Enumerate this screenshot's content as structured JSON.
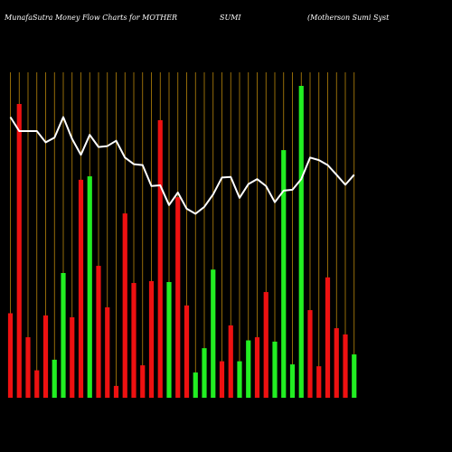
{
  "header": {
    "left": "MunafaSutra  Money Flow  Charts for MOTHER",
    "middle": "SUMI",
    "right": "(Motherson  Sumi  Syst"
  },
  "colors": {
    "background": "#000000",
    "up": "#22ee22",
    "down": "#ee1111",
    "grid": "#b8860b",
    "line": "#ffffff",
    "text": "#ffffff"
  },
  "chart_data": {
    "type": "bar",
    "title": "",
    "xlabel": "",
    "ylabel": "",
    "ylim": [
      0,
      100
    ],
    "legend": "none",
    "grid": "vertical",
    "series": [
      {
        "name": "",
        "type": "bar",
        "values": [
          27.1,
          94.2,
          19.4,
          8.8,
          26.4,
          12.2,
          40.0,
          25.8,
          69.9,
          71.0,
          42.3,
          29.0,
          3.8,
          59.1,
          36.8,
          10.4,
          37.4,
          89.0,
          37.1,
          64.3,
          29.6,
          8.1,
          15.9,
          41.1,
          11.7,
          23.2,
          11.7,
          18.4,
          19.4,
          33.9,
          18.0,
          79.4,
          10.7,
          100.0,
          28.1,
          10.1,
          38.6,
          22.3,
          20.3,
          13.9
        ],
        "direction": [
          "down",
          "down",
          "down",
          "down",
          "down",
          "up",
          "up",
          "down",
          "down",
          "up",
          "down",
          "down",
          "down",
          "down",
          "down",
          "down",
          "down",
          "down",
          "up",
          "down",
          "down",
          "up",
          "up",
          "up",
          "down",
          "down",
          "up",
          "up",
          "down",
          "down",
          "up",
          "up",
          "up",
          "up",
          "down",
          "down",
          "down",
          "down",
          "down",
          "up"
        ]
      },
      {
        "name": "",
        "type": "line",
        "values": [
          90.0,
          85.5,
          85.5,
          85.5,
          81.9,
          83.4,
          90.0,
          83.0,
          77.9,
          84.3,
          80.4,
          80.7,
          82.4,
          77.0,
          74.9,
          74.6,
          67.9,
          68.1,
          61.8,
          65.8,
          60.6,
          59.0,
          61.2,
          65.2,
          70.6,
          70.8,
          64.1,
          68.5,
          70.1,
          67.9,
          62.7,
          66.4,
          66.7,
          70.1,
          77.0,
          76.2,
          74.6,
          71.5,
          68.3,
          71.5
        ]
      }
    ]
  }
}
